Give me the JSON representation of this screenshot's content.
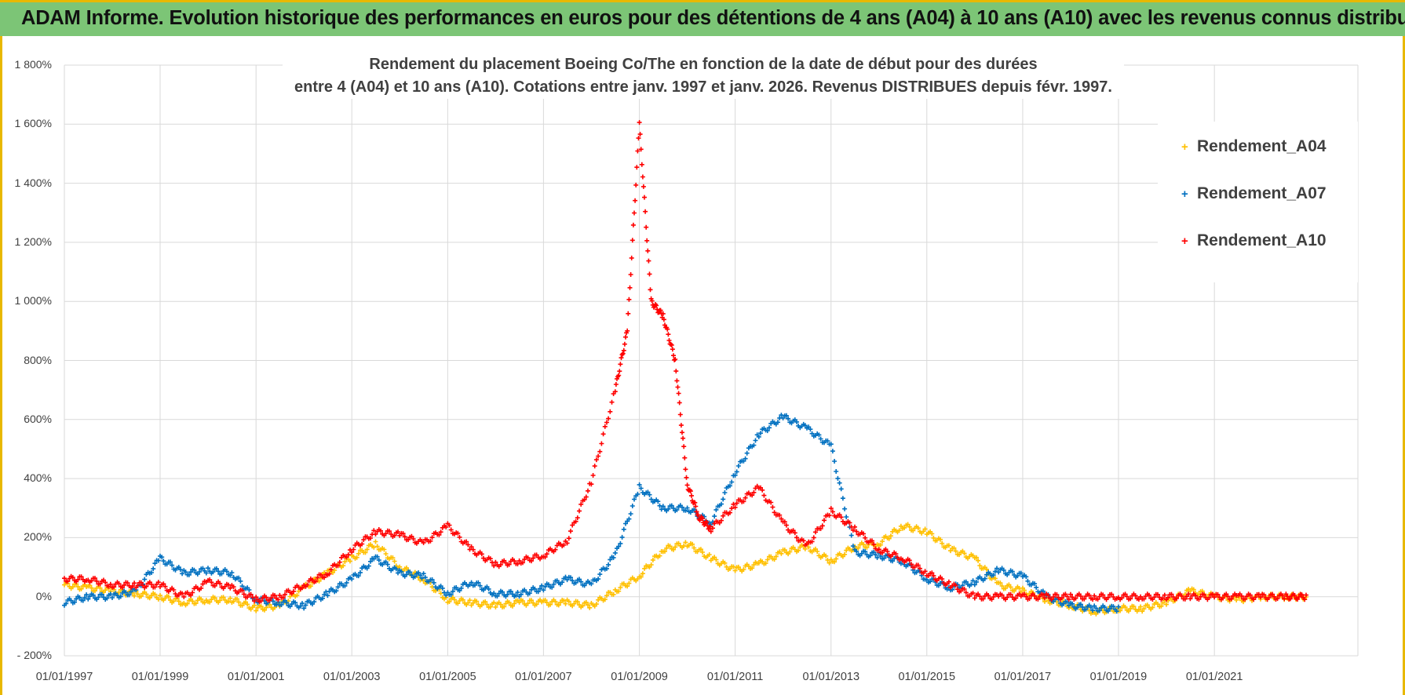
{
  "banner": {
    "title": "ADAM Informe. Evolution historique des performances en euros pour des détentions de 4 ans (A04) à 10 ans (A10) avec les revenus connus distribués"
  },
  "colors": {
    "banner_bg": "#7cc576",
    "edge": "#e8b800",
    "A04": "#ffc000",
    "A07": "#0070c0",
    "A10": "#ff0000",
    "grid": "#d9d9d9"
  },
  "chart_data": {
    "type": "scatter",
    "title_line1": "Rendement du placement Boeing Co/The en fonction de la date de début pour des durées",
    "title_line2": "entre 4 (A04) et 10 ans (A10). Cotations entre janv. 1997 et janv. 2026. Revenus DISTRIBUES depuis févr. 1997.",
    "xlabel": "",
    "ylabel": "",
    "ylim": [
      -200,
      1800
    ],
    "xlim": [
      "1997-01-01",
      "2023-12-31"
    ],
    "grid": true,
    "legend_position": "top-right",
    "marker": "plus",
    "y_tick_labels": [
      "- 200%",
      "0%",
      "200%",
      "400%",
      "600%",
      "800%",
      "1 000%",
      "1 200%",
      "1 400%",
      "1 600%",
      "1 800%"
    ],
    "y_tick_values": [
      -200,
      0,
      200,
      400,
      600,
      800,
      1000,
      1200,
      1400,
      1600,
      1800
    ],
    "x_tick_labels": [
      "01/01/1997",
      "01/01/1999",
      "01/01/2001",
      "01/01/2003",
      "01/01/2005",
      "01/01/2007",
      "01/01/2009",
      "01/01/2011",
      "01/01/2013",
      "01/01/2015",
      "01/01/2017",
      "01/01/2019",
      "01/01/2021"
    ],
    "x_tick_values": [
      "1997-01-01",
      "1999-01-01",
      "2001-01-01",
      "2003-01-01",
      "2005-01-01",
      "2007-01-01",
      "2009-01-01",
      "2011-01-01",
      "2013-01-01",
      "2015-01-01",
      "2017-01-01",
      "2019-01-01",
      "2021-01-01"
    ],
    "series": [
      {
        "name": "Rendement_A04",
        "color": "#ffc000",
        "x": [
          "1997-01-01",
          "1997-07-01",
          "1998-01-01",
          "1998-07-01",
          "1999-01-01",
          "1999-07-01",
          "2000-01-01",
          "2000-07-01",
          "2001-01-01",
          "2001-07-01",
          "2002-01-01",
          "2002-07-01",
          "2003-01-01",
          "2003-07-01",
          "2004-01-01",
          "2004-07-01",
          "2005-01-01",
          "2005-07-01",
          "2006-01-01",
          "2006-07-01",
          "2007-01-01",
          "2007-07-01",
          "2008-01-01",
          "2008-07-01",
          "2009-01-01",
          "2009-07-01",
          "2010-01-01",
          "2010-07-01",
          "2011-01-01",
          "2011-07-01",
          "2012-01-01",
          "2012-07-01",
          "2013-01-01",
          "2013-07-01",
          "2014-01-01",
          "2014-07-01",
          "2015-01-01",
          "2015-07-01",
          "2016-01-01",
          "2016-07-01",
          "2017-01-01",
          "2017-07-01",
          "2018-01-01",
          "2018-07-01",
          "2019-01-01",
          "2019-07-01",
          "2020-01-01",
          "2020-07-01",
          "2021-01-01",
          "2021-07-01",
          "2022-01-01",
          "2022-07-01",
          "2022-12-01"
        ],
        "y": [
          40,
          30,
          20,
          10,
          0,
          -20,
          -10,
          -10,
          -40,
          -30,
          30,
          80,
          130,
          180,
          100,
          60,
          -10,
          -20,
          -30,
          -20,
          -20,
          -20,
          -30,
          20,
          70,
          160,
          180,
          130,
          90,
          110,
          150,
          170,
          120,
          170,
          180,
          240,
          220,
          160,
          130,
          40,
          20,
          -10,
          -30,
          -50,
          -40,
          -40,
          -20,
          20,
          0,
          -10,
          0,
          0,
          0
        ]
      },
      {
        "name": "Rendement_A07",
        "color": "#0070c0",
        "x": [
          "1997-01-01",
          "1997-07-01",
          "1998-01-01",
          "1998-07-01",
          "1999-01-01",
          "1999-07-01",
          "2000-01-01",
          "2000-07-01",
          "2001-01-01",
          "2001-07-01",
          "2002-01-01",
          "2002-07-01",
          "2003-01-01",
          "2003-07-01",
          "2004-01-01",
          "2004-07-01",
          "2005-01-01",
          "2005-07-01",
          "2006-01-01",
          "2006-07-01",
          "2007-01-01",
          "2007-07-01",
          "2008-01-01",
          "2008-07-01",
          "2009-01-01",
          "2009-07-01",
          "2010-01-01",
          "2010-07-01",
          "2011-01-01",
          "2011-07-01",
          "2012-01-01",
          "2012-07-01",
          "2013-01-01",
          "2013-07-01",
          "2014-01-01",
          "2014-07-01",
          "2015-01-01",
          "2015-07-01",
          "2016-01-01",
          "2016-07-01",
          "2017-01-01",
          "2017-07-01",
          "2018-01-01",
          "2018-07-01",
          "2019-01-01"
        ],
        "y": [
          -20,
          0,
          0,
          20,
          130,
          80,
          90,
          80,
          -10,
          -20,
          -30,
          10,
          60,
          130,
          80,
          70,
          10,
          50,
          10,
          10,
          30,
          60,
          40,
          140,
          370,
          300,
          300,
          250,
          420,
          550,
          610,
          570,
          510,
          150,
          140,
          120,
          60,
          30,
          50,
          90,
          70,
          0,
          -30,
          -40,
          -40
        ]
      },
      {
        "name": "Rendement_A10",
        "color": "#ff0000",
        "x": [
          "1997-01-01",
          "1997-07-01",
          "1998-01-01",
          "1998-07-01",
          "1999-01-01",
          "1999-07-01",
          "2000-01-01",
          "2000-07-01",
          "2001-01-01",
          "2001-07-01",
          "2002-01-01",
          "2002-07-01",
          "2003-01-01",
          "2003-07-01",
          "2004-01-01",
          "2004-07-01",
          "2005-01-01",
          "2005-07-01",
          "2006-01-01",
          "2006-07-01",
          "2007-01-01",
          "2007-07-01",
          "2008-01-01",
          "2008-07-01",
          "2008-10-01",
          "2009-01-01",
          "2009-04-01",
          "2009-07-01",
          "2009-10-01",
          "2010-01-01",
          "2010-04-01",
          "2010-07-01",
          "2011-01-01",
          "2011-07-01",
          "2012-01-01",
          "2012-07-01",
          "2013-01-01",
          "2013-07-01",
          "2014-01-01",
          "2014-07-01",
          "2015-01-01",
          "2015-07-01",
          "2016-01-01",
          "2016-07-01",
          "2017-01-01",
          "2017-07-01",
          "2018-01-01",
          "2018-07-01",
          "2019-01-01",
          "2019-07-01",
          "2020-01-01",
          "2020-07-01",
          "2021-01-01",
          "2021-07-01",
          "2022-01-01",
          "2022-07-01",
          "2022-12-01"
        ],
        "y": [
          60,
          60,
          40,
          40,
          40,
          0,
          50,
          30,
          -10,
          0,
          40,
          80,
          160,
          220,
          210,
          180,
          240,
          160,
          110,
          120,
          140,
          190,
          390,
          700,
          900,
          1600,
          1000,
          950,
          800,
          380,
          270,
          230,
          310,
          370,
          250,
          170,
          290,
          230,
          160,
          130,
          80,
          40,
          0,
          0,
          0,
          0,
          0,
          0,
          0,
          0,
          0,
          0,
          0,
          0,
          0,
          0,
          0
        ]
      }
    ]
  }
}
